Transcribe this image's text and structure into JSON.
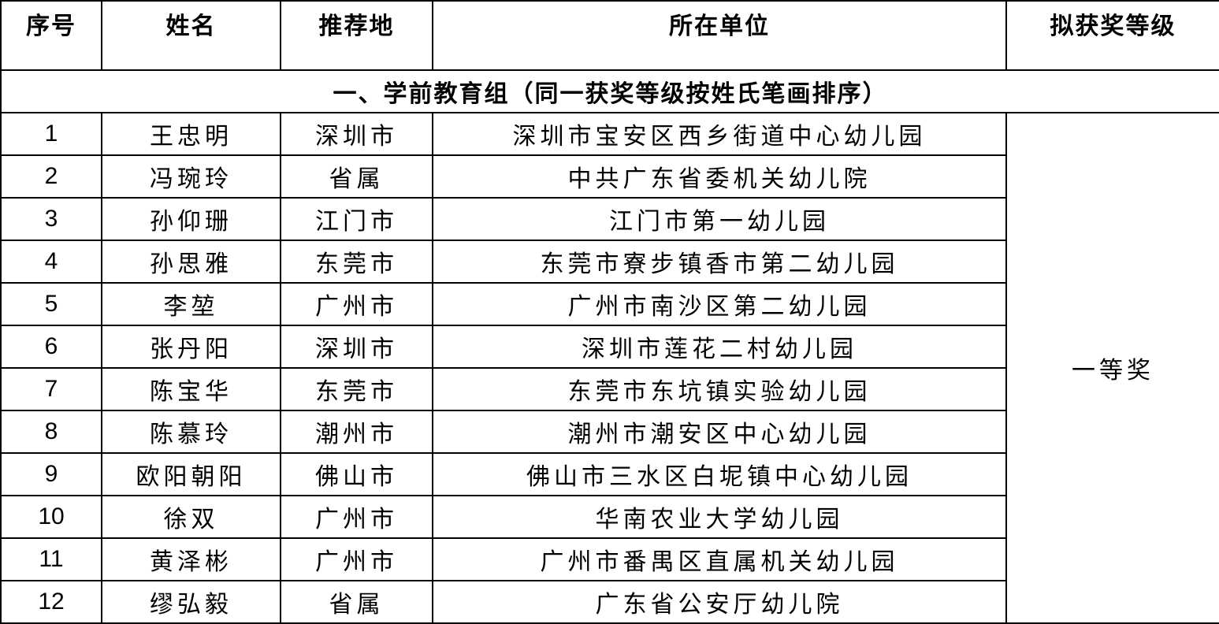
{
  "headers": [
    "序号",
    "姓名",
    "推荐地",
    "所在单位",
    "拟获奖等级"
  ],
  "section_title": "一、学前教育组（同一获奖等级按姓氏笔画排序）",
  "award_level": "一等奖",
  "rows": [
    {
      "no": "1",
      "name": "王忠明",
      "region": "深圳市",
      "unit": "深圳市宝安区西乡街道中心幼儿园"
    },
    {
      "no": "2",
      "name": "冯琬玲",
      "region": "省属",
      "unit": "中共广东省委机关幼儿院"
    },
    {
      "no": "3",
      "name": "孙仰珊",
      "region": "江门市",
      "unit": "江门市第一幼儿园"
    },
    {
      "no": "4",
      "name": "孙思雅",
      "region": "东莞市",
      "unit": "东莞市寮步镇香市第二幼儿园"
    },
    {
      "no": "5",
      "name": "李堃",
      "region": "广州市",
      "unit": "广州市南沙区第二幼儿园"
    },
    {
      "no": "6",
      "name": "张丹阳",
      "region": "深圳市",
      "unit": "深圳市莲花二村幼儿园"
    },
    {
      "no": "7",
      "name": "陈宝华",
      "region": "东莞市",
      "unit": "东莞市东坑镇实验幼儿园"
    },
    {
      "no": "8",
      "name": "陈慕玲",
      "region": "潮州市",
      "unit": "潮州市潮安区中心幼儿园"
    },
    {
      "no": "9",
      "name": "欧阳朝阳",
      "region": "佛山市",
      "unit": "佛山市三水区白坭镇中心幼儿园"
    },
    {
      "no": "10",
      "name": "徐双",
      "region": "广州市",
      "unit": "华南农业大学幼儿园"
    },
    {
      "no": "11",
      "name": "黄泽彬",
      "region": "广州市",
      "unit": "广州市番禺区直属机关幼儿园"
    },
    {
      "no": "12",
      "name": "缪弘毅",
      "region": "省属",
      "unit": "广东省公安厅幼儿院"
    }
  ]
}
